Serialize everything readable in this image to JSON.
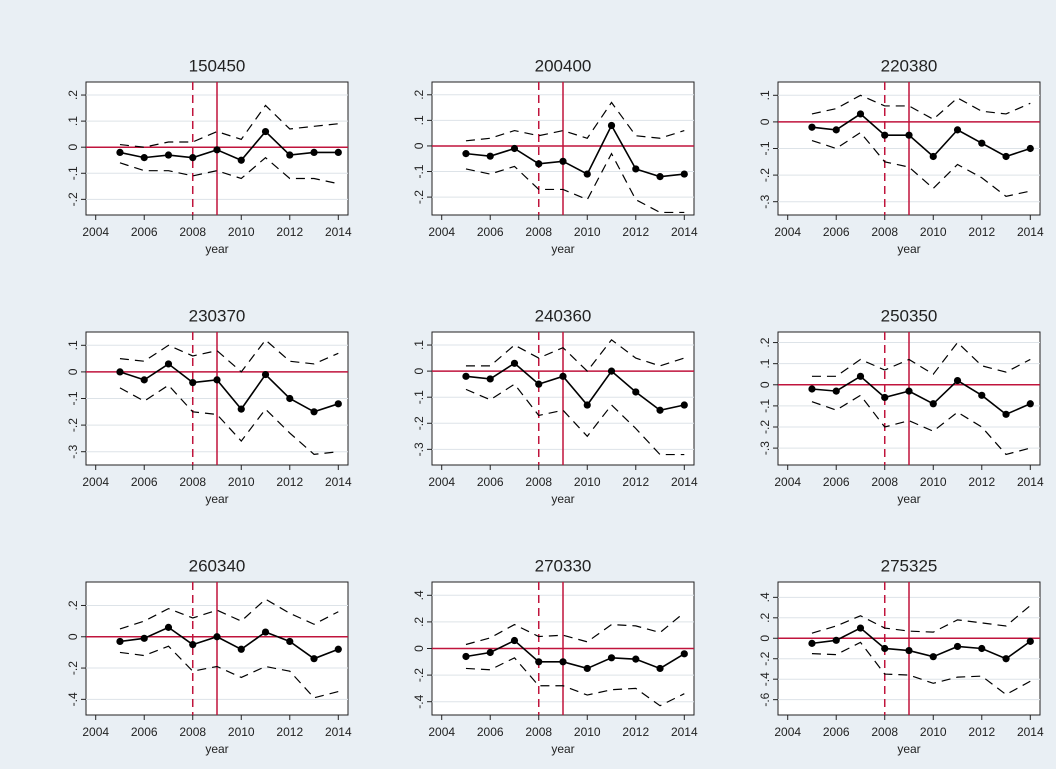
{
  "chart_data": [
    {
      "type": "line",
      "title": "150450",
      "xlabel": "year",
      "x": [
        2005,
        2006,
        2007,
        2008,
        2009,
        2010,
        2011,
        2012,
        2013,
        2014
      ],
      "xlim": [
        2003.6,
        2014.4
      ],
      "xticks": [
        2004,
        2006,
        2008,
        2010,
        2012,
        2014
      ],
      "ylim": [
        -0.26,
        0.25
      ],
      "yticks": [
        {
          "value": -0.2,
          "label": "-.2"
        },
        {
          "value": -0.1,
          "label": "-.1"
        },
        0,
        {
          "value": 0.1,
          "label": ".1"
        },
        {
          "value": 0.2,
          "label": ".2"
        }
      ],
      "grid": true,
      "yline": 0,
      "xlines": [
        {
          "value": 2008,
          "style": "dashed"
        },
        {
          "value": 2009,
          "style": "solid"
        }
      ],
      "refline_color": "#c0143c",
      "series": [
        {
          "color": "#000000",
          "style": "solid",
          "markers": true,
          "values": [
            -0.02,
            -0.04,
            -0.03,
            -0.04,
            -0.01,
            -0.05,
            0.06,
            -0.03,
            -0.02,
            -0.02
          ]
        },
        {
          "color": "#000000",
          "style": "dashed",
          "markers": false,
          "values": [
            0.01,
            0.0,
            0.02,
            0.02,
            0.06,
            0.03,
            0.16,
            0.07,
            0.08,
            0.09
          ]
        },
        {
          "color": "#000000",
          "style": "dashed",
          "markers": false,
          "values": [
            -0.06,
            -0.09,
            -0.09,
            -0.11,
            -0.09,
            -0.12,
            -0.04,
            -0.12,
            -0.12,
            -0.14
          ]
        }
      ]
    },
    {
      "type": "line",
      "title": "200400",
      "xlabel": "year",
      "x": [
        2005,
        2006,
        2007,
        2008,
        2009,
        2010,
        2011,
        2012,
        2013,
        2014
      ],
      "xlim": [
        2003.6,
        2014.4
      ],
      "xticks": [
        2004,
        2006,
        2008,
        2010,
        2012,
        2014
      ],
      "ylim": [
        -0.27,
        0.25
      ],
      "yticks": [
        {
          "value": -0.2,
          "label": "-.2"
        },
        {
          "value": -0.1,
          "label": "-.1"
        },
        0,
        {
          "value": 0.1,
          "label": ".1"
        },
        {
          "value": 0.2,
          "label": ".2"
        }
      ],
      "grid": true,
      "yline": 0,
      "xlines": [
        {
          "value": 2008,
          "style": "dashed"
        },
        {
          "value": 2009,
          "style": "solid"
        }
      ],
      "refline_color": "#c0143c",
      "series": [
        {
          "color": "#000000",
          "style": "solid",
          "markers": true,
          "values": [
            -0.03,
            -0.04,
            -0.01,
            -0.07,
            -0.06,
            -0.11,
            0.08,
            -0.09,
            -0.12,
            -0.11
          ]
        },
        {
          "color": "#000000",
          "style": "dashed",
          "markers": false,
          "values": [
            0.02,
            0.03,
            0.06,
            0.04,
            0.06,
            0.03,
            0.17,
            0.04,
            0.03,
            0.06
          ]
        },
        {
          "color": "#000000",
          "style": "dashed",
          "markers": false,
          "values": [
            -0.09,
            -0.11,
            -0.08,
            -0.17,
            -0.17,
            -0.21,
            -0.03,
            -0.21,
            -0.26,
            -0.26
          ]
        }
      ]
    },
    {
      "type": "line",
      "title": "220380",
      "xlabel": "year",
      "x": [
        2005,
        2006,
        2007,
        2008,
        2009,
        2010,
        2011,
        2012,
        2013,
        2014
      ],
      "xlim": [
        2003.6,
        2014.4
      ],
      "xticks": [
        2004,
        2006,
        2008,
        2010,
        2012,
        2014
      ],
      "ylim": [
        -0.35,
        0.15
      ],
      "yticks": [
        {
          "value": -0.3,
          "label": "-.3"
        },
        {
          "value": -0.2,
          "label": "-.2"
        },
        {
          "value": -0.1,
          "label": "-.1"
        },
        0,
        {
          "value": 0.1,
          "label": ".1"
        }
      ],
      "grid": true,
      "yline": 0,
      "xlines": [
        {
          "value": 2008,
          "style": "dashed"
        },
        {
          "value": 2009,
          "style": "solid"
        }
      ],
      "refline_color": "#c0143c",
      "series": [
        {
          "color": "#000000",
          "style": "solid",
          "markers": true,
          "values": [
            -0.02,
            -0.03,
            0.03,
            -0.05,
            -0.05,
            -0.13,
            -0.03,
            -0.08,
            -0.13,
            -0.1
          ]
        },
        {
          "color": "#000000",
          "style": "dashed",
          "markers": false,
          "values": [
            0.03,
            0.05,
            0.1,
            0.06,
            0.06,
            0.01,
            0.09,
            0.04,
            0.03,
            0.07
          ]
        },
        {
          "color": "#000000",
          "style": "dashed",
          "markers": false,
          "values": [
            -0.07,
            -0.1,
            -0.04,
            -0.15,
            -0.17,
            -0.25,
            -0.16,
            -0.21,
            -0.28,
            -0.26
          ]
        }
      ]
    },
    {
      "type": "line",
      "title": "230370",
      "xlabel": "year",
      "x": [
        2005,
        2006,
        2007,
        2008,
        2009,
        2010,
        2011,
        2012,
        2013,
        2014
      ],
      "xlim": [
        2003.6,
        2014.4
      ],
      "xticks": [
        2004,
        2006,
        2008,
        2010,
        2012,
        2014
      ],
      "ylim": [
        -0.35,
        0.15
      ],
      "yticks": [
        {
          "value": -0.3,
          "label": "-.3"
        },
        {
          "value": -0.2,
          "label": "-.2"
        },
        {
          "value": -0.1,
          "label": "-.1"
        },
        0,
        {
          "value": 0.1,
          "label": ".1"
        }
      ],
      "grid": true,
      "yline": 0,
      "xlines": [
        {
          "value": 2008,
          "style": "dashed"
        },
        {
          "value": 2009,
          "style": "solid"
        }
      ],
      "refline_color": "#c0143c",
      "series": [
        {
          "color": "#000000",
          "style": "solid",
          "markers": true,
          "values": [
            0.0,
            -0.03,
            0.03,
            -0.04,
            -0.03,
            -0.14,
            -0.01,
            -0.1,
            -0.15,
            -0.12
          ]
        },
        {
          "color": "#000000",
          "style": "dashed",
          "markers": false,
          "values": [
            0.05,
            0.04,
            0.1,
            0.06,
            0.08,
            0.0,
            0.12,
            0.04,
            0.03,
            0.07
          ]
        },
        {
          "color": "#000000",
          "style": "dashed",
          "markers": false,
          "values": [
            -0.06,
            -0.11,
            -0.05,
            -0.15,
            -0.16,
            -0.26,
            -0.14,
            -0.23,
            -0.31,
            -0.3
          ]
        }
      ]
    },
    {
      "type": "line",
      "title": "240360",
      "xlabel": "year",
      "x": [
        2005,
        2006,
        2007,
        2008,
        2009,
        2010,
        2011,
        2012,
        2013,
        2014
      ],
      "xlim": [
        2003.6,
        2014.4
      ],
      "xticks": [
        2004,
        2006,
        2008,
        2010,
        2012,
        2014
      ],
      "ylim": [
        -0.36,
        0.15
      ],
      "yticks": [
        {
          "value": -0.3,
          "label": "-.3"
        },
        {
          "value": -0.2,
          "label": "-.2"
        },
        {
          "value": -0.1,
          "label": "-.1"
        },
        0,
        {
          "value": 0.1,
          "label": ".1"
        }
      ],
      "grid": true,
      "yline": 0,
      "xlines": [
        {
          "value": 2008,
          "style": "dashed"
        },
        {
          "value": 2009,
          "style": "solid"
        }
      ],
      "refline_color": "#c0143c",
      "series": [
        {
          "color": "#000000",
          "style": "solid",
          "markers": true,
          "values": [
            -0.02,
            -0.03,
            0.03,
            -0.05,
            -0.02,
            -0.13,
            0.0,
            -0.08,
            -0.15,
            -0.13
          ]
        },
        {
          "color": "#000000",
          "style": "dashed",
          "markers": false,
          "values": [
            0.02,
            0.02,
            0.1,
            0.05,
            0.09,
            0.0,
            0.12,
            0.05,
            0.02,
            0.05
          ]
        },
        {
          "color": "#000000",
          "style": "dashed",
          "markers": false,
          "values": [
            -0.07,
            -0.11,
            -0.05,
            -0.17,
            -0.15,
            -0.25,
            -0.13,
            -0.22,
            -0.32,
            -0.32
          ]
        }
      ]
    },
    {
      "type": "line",
      "title": "250350",
      "xlabel": "year",
      "x": [
        2005,
        2006,
        2007,
        2008,
        2009,
        2010,
        2011,
        2012,
        2013,
        2014
      ],
      "xlim": [
        2003.6,
        2014.4
      ],
      "xticks": [
        2004,
        2006,
        2008,
        2010,
        2012,
        2014
      ],
      "ylim": [
        -0.38,
        0.25
      ],
      "yticks": [
        {
          "value": -0.3,
          "label": "-.3"
        },
        {
          "value": -0.2,
          "label": "-.2"
        },
        {
          "value": -0.1,
          "label": "-.1"
        },
        0,
        {
          "value": 0.1,
          "label": ".1"
        },
        {
          "value": 0.2,
          "label": ".2"
        }
      ],
      "grid": true,
      "yline": 0,
      "xlines": [
        {
          "value": 2008,
          "style": "dashed"
        },
        {
          "value": 2009,
          "style": "solid"
        }
      ],
      "refline_color": "#c0143c",
      "series": [
        {
          "color": "#000000",
          "style": "solid",
          "markers": true,
          "values": [
            -0.02,
            -0.03,
            0.04,
            -0.06,
            -0.03,
            -0.09,
            0.02,
            -0.05,
            -0.14,
            -0.09
          ]
        },
        {
          "color": "#000000",
          "style": "dashed",
          "markers": false,
          "values": [
            0.04,
            0.04,
            0.12,
            0.07,
            0.12,
            0.05,
            0.2,
            0.09,
            0.06,
            0.12
          ]
        },
        {
          "color": "#000000",
          "style": "dashed",
          "markers": false,
          "values": [
            -0.08,
            -0.12,
            -0.05,
            -0.2,
            -0.17,
            -0.22,
            -0.13,
            -0.2,
            -0.33,
            -0.3
          ]
        }
      ]
    },
    {
      "type": "line",
      "title": "260340",
      "xlabel": "year",
      "x": [
        2005,
        2006,
        2007,
        2008,
        2009,
        2010,
        2011,
        2012,
        2013,
        2014
      ],
      "xlim": [
        2003.6,
        2014.4
      ],
      "xticks": [
        2004,
        2006,
        2008,
        2010,
        2012,
        2014
      ],
      "ylim": [
        -0.5,
        0.35
      ],
      "yticks": [
        {
          "value": -0.4,
          "label": "-.4"
        },
        {
          "value": -0.2,
          "label": "-.2"
        },
        0,
        {
          "value": 0.2,
          "label": ".2"
        }
      ],
      "grid": true,
      "yline": 0,
      "xlines": [
        {
          "value": 2008,
          "style": "dashed"
        },
        {
          "value": 2009,
          "style": "solid"
        }
      ],
      "refline_color": "#c0143c",
      "series": [
        {
          "color": "#000000",
          "style": "solid",
          "markers": true,
          "values": [
            -0.03,
            -0.01,
            0.06,
            -0.05,
            0.0,
            -0.08,
            0.03,
            -0.03,
            -0.14,
            -0.08
          ]
        },
        {
          "color": "#000000",
          "style": "dashed",
          "markers": false,
          "values": [
            0.05,
            0.1,
            0.18,
            0.12,
            0.17,
            0.1,
            0.24,
            0.15,
            0.08,
            0.16
          ]
        },
        {
          "color": "#000000",
          "style": "dashed",
          "markers": false,
          "values": [
            -0.1,
            -0.12,
            -0.06,
            -0.22,
            -0.19,
            -0.26,
            -0.19,
            -0.22,
            -0.39,
            -0.35
          ]
        }
      ]
    },
    {
      "type": "line",
      "title": "270330",
      "xlabel": "year",
      "x": [
        2005,
        2006,
        2007,
        2008,
        2009,
        2010,
        2011,
        2012,
        2013,
        2014
      ],
      "xlim": [
        2003.6,
        2014.4
      ],
      "xticks": [
        2004,
        2006,
        2008,
        2010,
        2012,
        2014
      ],
      "ylim": [
        -0.5,
        0.5
      ],
      "yticks": [
        {
          "value": -0.4,
          "label": "-.4"
        },
        {
          "value": -0.2,
          "label": "-.2"
        },
        0,
        {
          "value": 0.2,
          "label": ".2"
        },
        {
          "value": 0.4,
          "label": ".4"
        }
      ],
      "grid": true,
      "yline": 0,
      "xlines": [
        {
          "value": 2008,
          "style": "dashed"
        },
        {
          "value": 2009,
          "style": "solid"
        }
      ],
      "refline_color": "#c0143c",
      "series": [
        {
          "color": "#000000",
          "style": "solid",
          "markers": true,
          "values": [
            -0.06,
            -0.03,
            0.06,
            -0.1,
            -0.1,
            -0.15,
            -0.07,
            -0.08,
            -0.15,
            -0.04
          ]
        },
        {
          "color": "#000000",
          "style": "dashed",
          "markers": false,
          "values": [
            0.03,
            0.08,
            0.18,
            0.09,
            0.1,
            0.05,
            0.18,
            0.17,
            0.12,
            0.27
          ]
        },
        {
          "color": "#000000",
          "style": "dashed",
          "markers": false,
          "values": [
            -0.15,
            -0.16,
            -0.07,
            -0.28,
            -0.28,
            -0.35,
            -0.31,
            -0.3,
            -0.43,
            -0.34
          ]
        }
      ]
    },
    {
      "type": "line",
      "title": "275325",
      "xlabel": "year",
      "x": [
        2005,
        2006,
        2007,
        2008,
        2009,
        2010,
        2011,
        2012,
        2013,
        2014
      ],
      "xlim": [
        2003.6,
        2014.4
      ],
      "xticks": [
        2004,
        2006,
        2008,
        2010,
        2012,
        2014
      ],
      "ylim": [
        -0.75,
        0.55
      ],
      "yticks": [
        {
          "value": -0.6,
          "label": "-.6"
        },
        {
          "value": -0.4,
          "label": "-.4"
        },
        {
          "value": -0.2,
          "label": "-.2"
        },
        0,
        {
          "value": 0.2,
          "label": ".2"
        },
        {
          "value": 0.4,
          "label": ".4"
        }
      ],
      "grid": true,
      "yline": 0,
      "xlines": [
        {
          "value": 2008,
          "style": "dashed"
        },
        {
          "value": 2009,
          "style": "solid"
        }
      ],
      "refline_color": "#c0143c",
      "series": [
        {
          "color": "#000000",
          "style": "solid",
          "markers": true,
          "values": [
            -0.05,
            -0.02,
            0.1,
            -0.1,
            -0.12,
            -0.18,
            -0.08,
            -0.1,
            -0.2,
            -0.03
          ]
        },
        {
          "color": "#000000",
          "style": "dashed",
          "markers": false,
          "values": [
            0.05,
            0.12,
            0.22,
            0.1,
            0.07,
            0.06,
            0.18,
            0.15,
            0.12,
            0.32
          ]
        },
        {
          "color": "#000000",
          "style": "dashed",
          "markers": false,
          "values": [
            -0.15,
            -0.16,
            -0.04,
            -0.35,
            -0.36,
            -0.44,
            -0.38,
            -0.37,
            -0.55,
            -0.42
          ]
        }
      ]
    }
  ]
}
